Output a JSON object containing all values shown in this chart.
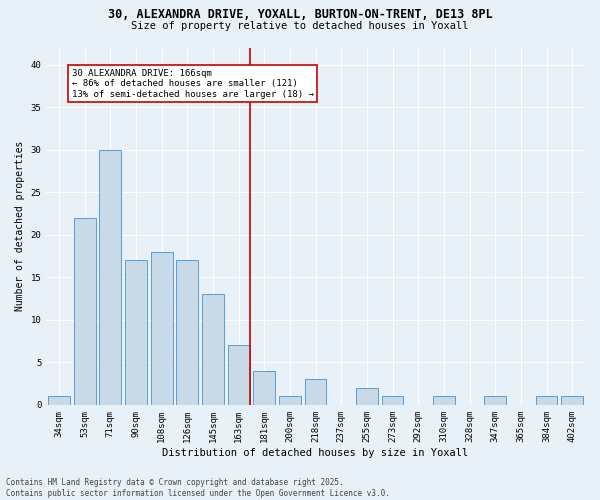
{
  "title_line1": "30, ALEXANDRA DRIVE, YOXALL, BURTON-ON-TRENT, DE13 8PL",
  "title_line2": "Size of property relative to detached houses in Yoxall",
  "xlabel": "Distribution of detached houses by size in Yoxall",
  "ylabel": "Number of detached properties",
  "categories": [
    "34sqm",
    "53sqm",
    "71sqm",
    "90sqm",
    "108sqm",
    "126sqm",
    "145sqm",
    "163sqm",
    "181sqm",
    "200sqm",
    "218sqm",
    "237sqm",
    "255sqm",
    "273sqm",
    "292sqm",
    "310sqm",
    "328sqm",
    "347sqm",
    "365sqm",
    "384sqm",
    "402sqm"
  ],
  "values": [
    1,
    22,
    30,
    17,
    18,
    17,
    13,
    7,
    4,
    1,
    3,
    0,
    2,
    1,
    0,
    1,
    0,
    1,
    0,
    1,
    1
  ],
  "bar_color": "#c8d9e8",
  "bar_edge_color": "#5b9bd5",
  "vline_index": 7,
  "vline_color": "#cc0000",
  "annotation_title": "30 ALEXANDRA DRIVE: 166sqm",
  "annotation_line2": "← 86% of detached houses are smaller (121)",
  "annotation_line3": "13% of semi-detached houses are larger (18) →",
  "annotation_box_color": "#cc0000",
  "annotation_bg": "#ffffff",
  "ylim": [
    0,
    42
  ],
  "yticks": [
    0,
    5,
    10,
    15,
    20,
    25,
    30,
    35,
    40
  ],
  "bg_color": "#e8f0f8",
  "plot_bg_color": "#e8f0f8",
  "footer": "Contains HM Land Registry data © Crown copyright and database right 2025.\nContains public sector information licensed under the Open Government Licence v3.0.",
  "grid_color": "#ffffff",
  "title1_fontsize": 8.5,
  "title2_fontsize": 7.5,
  "xlabel_fontsize": 7.5,
  "ylabel_fontsize": 7.0,
  "tick_fontsize": 6.5,
  "ann_fontsize": 6.5,
  "footer_fontsize": 5.5
}
